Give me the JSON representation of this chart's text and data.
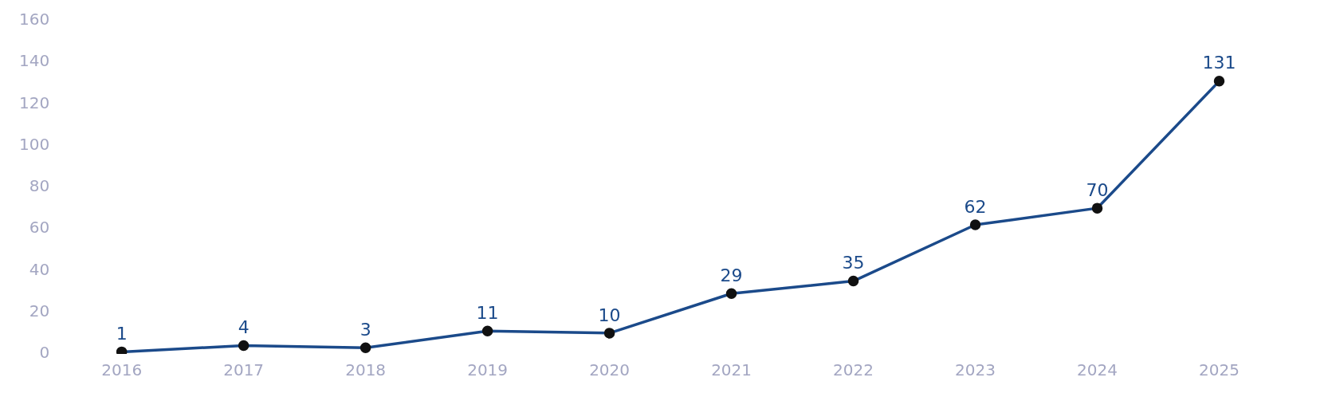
{
  "chart_data": {
    "type": "line",
    "categories": [
      "2016",
      "2017",
      "2018",
      "2019",
      "2020",
      "2021",
      "2022",
      "2023",
      "2024",
      "2025"
    ],
    "series": [
      {
        "color": "#1b4a8a",
        "values": [
          1,
          4,
          3,
          11,
          10,
          29,
          35,
          62,
          70,
          131
        ]
      }
    ],
    "ylim": [
      0,
      160
    ],
    "yticks": [
      0,
      20,
      40,
      60,
      80,
      100,
      120,
      140,
      160
    ],
    "grid": false,
    "legend": false,
    "marker": "circle",
    "line_style": "solid",
    "data_labels": true
  }
}
